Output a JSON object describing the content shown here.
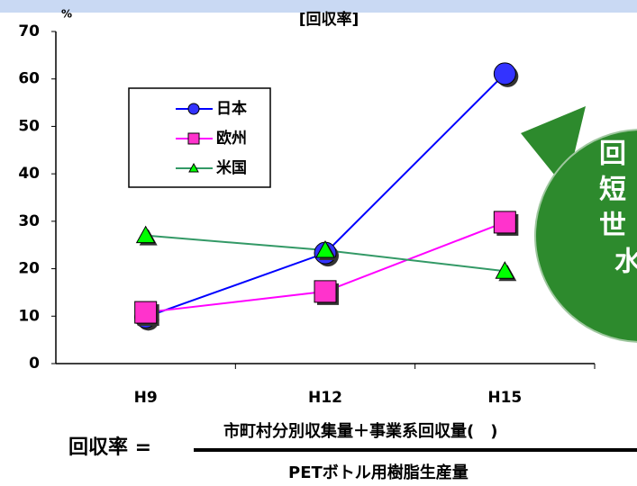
{
  "chart_data": {
    "type": "line",
    "title": "[回収率]",
    "y_unit": "%",
    "categories": [
      "H9",
      "H12",
      "H15"
    ],
    "series": [
      {
        "name": "日本",
        "color": "#0000ff",
        "marker_color": "#3333ff",
        "marker": "circle",
        "values": [
          9.8,
          23.3,
          61.1
        ]
      },
      {
        "name": "欧州",
        "color": "#ff00ff",
        "marker_color": "#ff33cc",
        "marker": "square",
        "values": [
          10.8,
          15.2,
          29.8
        ]
      },
      {
        "name": "米国",
        "color": "#339966",
        "marker_color": "#00ff00",
        "marker": "triangle",
        "values": [
          27,
          23.9,
          19.5
        ]
      }
    ],
    "ylim": [
      0,
      70
    ],
    "yticks": [
      0,
      10,
      20,
      30,
      40,
      50,
      60,
      70
    ],
    "grid": false,
    "callout": [
      "回",
      "短",
      "世",
      "水"
    ],
    "formula": {
      "lhs": "回収率 =",
      "numerator": "市町村分別収集量＋事業系回収量(　)",
      "denominator": "PETボトル用樹脂生産量"
    }
  }
}
